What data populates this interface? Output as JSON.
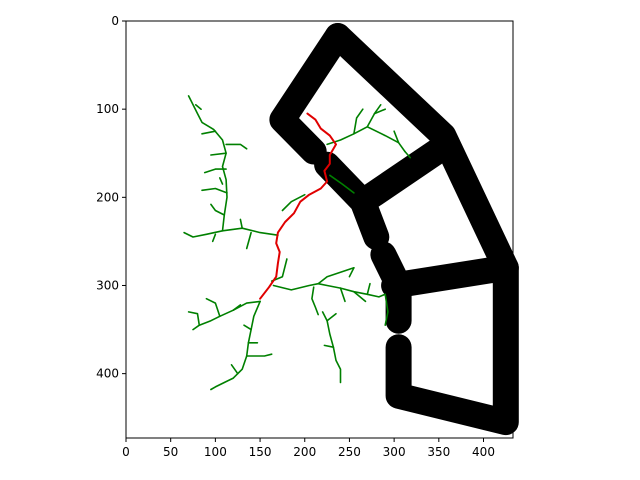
{
  "chart_data": {
    "type": "image-plot",
    "x_ticks": [
      0,
      50,
      100,
      150,
      200,
      250,
      300,
      350,
      400
    ],
    "y_ticks": [
      0,
      100,
      200,
      300,
      400
    ],
    "xlim": [
      0,
      433
    ],
    "ylim": [
      473,
      0
    ],
    "y_inverted": true,
    "grid": false,
    "legend": "none",
    "colors": {
      "obstacle": "#000000",
      "tree": "#008000",
      "path": "#e00000"
    },
    "obstacles": [
      {
        "points": [
          [
            237,
            17
          ],
          [
            175,
            112
          ],
          [
            210,
            148
          ]
        ]
      },
      {
        "points": [
          [
            237,
            17
          ],
          [
            355,
            130
          ],
          [
            425,
            280
          ]
        ]
      },
      {
        "points": [
          [
            225,
            163
          ],
          [
            265,
            205
          ],
          [
            280,
            245
          ]
        ]
      },
      {
        "points": [
          [
            265,
            205
          ],
          [
            355,
            143
          ]
        ]
      },
      {
        "points": [
          [
            288,
            265
          ],
          [
            305,
            300
          ],
          [
            305,
            340
          ]
        ]
      },
      {
        "points": [
          [
            300,
            300
          ],
          [
            425,
            280
          ],
          [
            425,
            455
          ],
          [
            305,
            425
          ],
          [
            305,
            370
          ]
        ]
      }
    ],
    "tree_branches": [
      {
        "points": [
          [
            70,
            85
          ],
          [
            80,
            105
          ],
          [
            85,
            115
          ],
          [
            98,
            123
          ],
          [
            108,
            135
          ],
          [
            112,
            150
          ],
          [
            108,
            165
          ],
          [
            112,
            180
          ],
          [
            113,
            200
          ],
          [
            110,
            220
          ],
          [
            108,
            238
          ],
          [
            90,
            242
          ],
          [
            75,
            245
          ],
          [
            65,
            240
          ]
        ]
      },
      {
        "points": [
          [
            78,
            95
          ],
          [
            84,
            100
          ]
        ]
      },
      {
        "points": [
          [
            85,
            128
          ],
          [
            100,
            125
          ]
        ]
      },
      {
        "points": [
          [
            112,
            140
          ],
          [
            128,
            140
          ],
          [
            135,
            145
          ]
        ]
      },
      {
        "points": [
          [
            95,
            152
          ],
          [
            112,
            150
          ]
        ]
      },
      {
        "points": [
          [
            88,
            172
          ],
          [
            100,
            168
          ],
          [
            112,
            168
          ]
        ]
      },
      {
        "points": [
          [
            85,
            192
          ],
          [
            100,
            190
          ],
          [
            113,
            195
          ]
        ]
      },
      {
        "points": [
          [
            108,
            185
          ],
          [
            105,
            178
          ]
        ]
      },
      {
        "points": [
          [
            110,
            220
          ],
          [
            100,
            215
          ],
          [
            95,
            208
          ]
        ]
      },
      {
        "points": [
          [
            108,
            238
          ],
          [
            130,
            235
          ],
          [
            150,
            240
          ],
          [
            170,
            243
          ]
        ]
      },
      {
        "points": [
          [
            130,
            235
          ],
          [
            128,
            225
          ]
        ]
      },
      {
        "points": [
          [
            140,
            240
          ],
          [
            135,
            258
          ]
        ]
      },
      {
        "points": [
          [
            100,
            242
          ],
          [
            97,
            250
          ]
        ]
      },
      {
        "points": [
          [
            150,
            318
          ],
          [
            135,
            320
          ],
          [
            120,
            328
          ],
          [
            105,
            335
          ],
          [
            95,
            340
          ],
          [
            82,
            345
          ],
          [
            75,
            350
          ]
        ]
      },
      {
        "points": [
          [
            105,
            335
          ],
          [
            100,
            320
          ],
          [
            90,
            315
          ]
        ]
      },
      {
        "points": [
          [
            82,
            345
          ],
          [
            80,
            332
          ],
          [
            70,
            330
          ]
        ]
      },
      {
        "points": [
          [
            120,
            328
          ],
          [
            128,
            322
          ]
        ]
      },
      {
        "points": [
          [
            150,
            318
          ],
          [
            143,
            335
          ],
          [
            140,
            350
          ],
          [
            137,
            365
          ],
          [
            135,
            380
          ],
          [
            130,
            395
          ],
          [
            120,
            405
          ],
          [
            110,
            410
          ],
          [
            100,
            415
          ],
          [
            95,
            418
          ]
        ]
      },
      {
        "points": [
          [
            140,
            350
          ],
          [
            132,
            345
          ]
        ]
      },
      {
        "points": [
          [
            137,
            365
          ],
          [
            147,
            365
          ]
        ]
      },
      {
        "points": [
          [
            135,
            380
          ],
          [
            155,
            380
          ],
          [
            163,
            378
          ]
        ]
      },
      {
        "points": [
          [
            125,
            400
          ],
          [
            118,
            390
          ]
        ]
      },
      {
        "points": [
          [
            163,
            295
          ],
          [
            175,
            290
          ],
          [
            180,
            270
          ]
        ]
      },
      {
        "points": [
          [
            165,
            300
          ],
          [
            185,
            305
          ],
          [
            205,
            300
          ],
          [
            215,
            298
          ],
          [
            225,
            300
          ],
          [
            240,
            303
          ],
          [
            255,
            307
          ],
          [
            270,
            310
          ],
          [
            283,
            313
          ],
          [
            290,
            310
          ]
        ]
      },
      {
        "points": [
          [
            210,
            302
          ],
          [
            208,
            315
          ],
          [
            212,
            325
          ],
          [
            215,
            333
          ]
        ]
      },
      {
        "points": [
          [
            215,
            298
          ],
          [
            225,
            290
          ],
          [
            240,
            285
          ],
          [
            255,
            280
          ]
        ]
      },
      {
        "points": [
          [
            255,
            280
          ],
          [
            250,
            290
          ]
        ]
      },
      {
        "points": [
          [
            220,
            330
          ],
          [
            225,
            340
          ],
          [
            228,
            355
          ],
          [
            232,
            370
          ],
          [
            235,
            385
          ],
          [
            240,
            395
          ],
          [
            240,
            410
          ]
        ]
      },
      {
        "points": [
          [
            232,
            370
          ],
          [
            222,
            368
          ]
        ]
      },
      {
        "points": [
          [
            225,
            340
          ],
          [
            235,
            332
          ]
        ]
      },
      {
        "points": [
          [
            240,
            303
          ],
          [
            245,
            318
          ]
        ]
      },
      {
        "points": [
          [
            270,
            310
          ],
          [
            273,
            298
          ]
        ]
      },
      {
        "points": [
          [
            290,
            310
          ],
          [
            293,
            330
          ],
          [
            290,
            345
          ]
        ]
      },
      {
        "points": [
          [
            255,
            307
          ],
          [
            268,
            318
          ]
        ]
      },
      {
        "points": [
          [
            225,
            140
          ],
          [
            240,
            135
          ],
          [
            255,
            128
          ],
          [
            270,
            120
          ],
          [
            278,
            105
          ],
          [
            285,
            95
          ]
        ]
      },
      {
        "points": [
          [
            255,
            128
          ],
          [
            258,
            110
          ],
          [
            265,
            100
          ]
        ]
      },
      {
        "points": [
          [
            270,
            120
          ],
          [
            290,
            130
          ],
          [
            305,
            138
          ],
          [
            312,
            148
          ]
        ]
      },
      {
        "points": [
          [
            278,
            105
          ],
          [
            290,
            100
          ]
        ]
      },
      {
        "points": [
          [
            305,
            138
          ],
          [
            300,
            125
          ]
        ]
      },
      {
        "points": [
          [
            228,
            175
          ],
          [
            242,
            185
          ],
          [
            255,
            195
          ]
        ]
      },
      {
        "points": [
          [
            312,
            148
          ],
          [
            318,
            155
          ]
        ]
      },
      {
        "points": [
          [
            200,
            197
          ],
          [
            185,
            205
          ],
          [
            175,
            215
          ]
        ]
      }
    ],
    "path": {
      "points": [
        [
          203,
          105
        ],
        [
          212,
          112
        ],
        [
          218,
          122
        ],
        [
          228,
          130
        ],
        [
          235,
          140
        ],
        [
          228,
          152
        ],
        [
          228,
          162
        ],
        [
          222,
          170
        ],
        [
          225,
          182
        ],
        [
          218,
          190
        ],
        [
          205,
          197
        ],
        [
          195,
          205
        ],
        [
          188,
          218
        ],
        [
          178,
          228
        ],
        [
          170,
          240
        ],
        [
          168,
          252
        ],
        [
          172,
          262
        ],
        [
          170,
          275
        ],
        [
          168,
          290
        ],
        [
          160,
          302
        ],
        [
          150,
          315
        ]
      ]
    }
  }
}
